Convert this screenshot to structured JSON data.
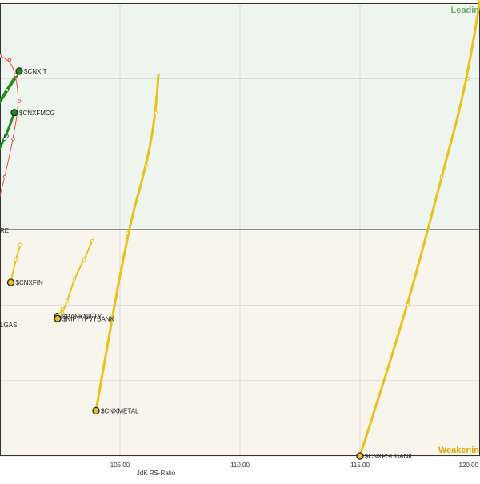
{
  "chart_data": {
    "type": "scatter",
    "title": "",
    "xlabel": "JdK RS-Ratio",
    "ylabel": "",
    "xlim": [
      100.0,
      120.0
    ],
    "ylim": [
      97.0,
      103.0
    ],
    "x_ticks": [
      105.0,
      110.0,
      115.0,
      120.0
    ],
    "x_tick_labels": [
      "105.00",
      "110.00",
      "115.00",
      "120.00"
    ],
    "center": 100,
    "grid": true,
    "quadrants": [
      {
        "name": "Leading",
        "label": "Leadin",
        "color": "#6aa96a",
        "position": "top-right"
      },
      {
        "name": "Weakening",
        "label": "Weakenin",
        "color": "#e0a800",
        "position": "bottom-right"
      }
    ],
    "colors": {
      "leading_bg": "#eef5ee",
      "weakening_bg": "#f8f5ec",
      "yellow_tail": "#e8c11c",
      "green_tail": "#1e8c1e",
      "red_tail": "#e05050",
      "grid": "#dcdcdc"
    },
    "series": [
      {
        "name": "$CNXIT",
        "color": "#1e8c1e",
        "stroke": 4,
        "x": [
          99.8,
          100.3,
          100.8
        ],
        "y": [
          101.6,
          101.85,
          102.1
        ]
      },
      {
        "name": "",
        "color": "#e05050",
        "stroke": 1,
        "markers": true,
        "x": [
          100.0,
          100.4,
          100.65,
          100.8,
          100.55,
          100.2,
          99.8
        ],
        "y": [
          102.3,
          102.25,
          102.05,
          101.7,
          101.2,
          100.7,
          100.2
        ]
      },
      {
        "name": "$CNXFMCG",
        "color": "#1e8c1e",
        "stroke": 3,
        "x": [
          99.7,
          100.2,
          100.6
        ],
        "y": [
          100.9,
          101.2,
          101.55
        ]
      },
      {
        "name": "$CNXFIN",
        "color": "#e8c11c",
        "stroke": 2,
        "x": [
          100.85,
          100.65,
          100.45
        ],
        "y": [
          99.8,
          99.6,
          99.3
        ]
      },
      {
        "name": "$BANKNIFTY",
        "color": "#e8c11c",
        "stroke": 2,
        "x": [
          103.85,
          103.5,
          103.1,
          102.8,
          102.6,
          102.4
        ],
        "y": [
          99.85,
          99.6,
          99.35,
          99.05,
          98.9,
          98.85
        ]
      },
      {
        "name": "$NIFTYPVTBANK",
        "color": "#e8c11c",
        "stroke": 2,
        "x": [
          102.6,
          102.5,
          102.4
        ],
        "y": [
          98.95,
          98.88,
          98.82
        ]
      },
      {
        "name": "$CNXMETAL",
        "color": "#e8c11c",
        "stroke": 3,
        "x": [
          106.6,
          106.5,
          106.1,
          105.3,
          104.0
        ],
        "y": [
          102.05,
          101.55,
          100.85,
          99.95,
          97.6
        ]
      },
      {
        "name": "$CNXPSUBANK",
        "color": "#e8c11c",
        "stroke": 3,
        "x": [
          120.0,
          119.5,
          118.4,
          117.0,
          115.0
        ],
        "y": [
          103.05,
          102.0,
          100.7,
          99.0,
          97.0
        ]
      }
    ],
    "labels": [
      {
        "series": "$CNXIT",
        "text": "$CNXIT"
      },
      {
        "series": "$CNXFMCG",
        "text": "$CNXFMCG"
      },
      {
        "series": "$CNXFIN",
        "text": "$CNXFIN"
      },
      {
        "series": "$BANKNIFTY",
        "text": "$BANKNIFTY"
      },
      {
        "series": "$NIFTYPVTBANK",
        "text": "$NIFTYPVTBANK"
      },
      {
        "series": "$CNXMETAL",
        "text": "$CNXMETAL"
      },
      {
        "series": "$CNXPSUBANK",
        "text": "$CNXPSUBANK"
      }
    ],
    "partial_labels": [
      "TO",
      "RE",
      "LGAS"
    ]
  }
}
